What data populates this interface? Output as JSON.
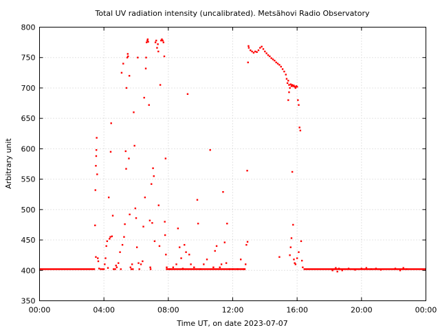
{
  "chart_data": {
    "type": "scatter",
    "title": "Total UV radiation intensity (uncalibrated). Metsähovi Radio Observatory",
    "xlabel": "Time UT, on date 2023-07-07",
    "ylabel": "Arbitrary unit",
    "xlim": [
      0,
      24
    ],
    "ylim": [
      350,
      800
    ],
    "x_ticks": [
      {
        "value": 0,
        "label": "00:00"
      },
      {
        "value": 4,
        "label": "04:00"
      },
      {
        "value": 8,
        "label": "08:00"
      },
      {
        "value": 12,
        "label": "12:00"
      },
      {
        "value": 16,
        "label": "16:00"
      },
      {
        "value": 20,
        "label": "20:00"
      },
      {
        "value": 24,
        "label": "00:00"
      }
    ],
    "y_ticks": [
      350,
      400,
      450,
      500,
      550,
      600,
      650,
      700,
      750,
      800
    ],
    "grid": true,
    "marker_color": "#ff0000",
    "series": [
      {
        "baseline_segments": [
          {
            "from": 0.0,
            "to": 3.45,
            "value": 402
          },
          {
            "from": 7.85,
            "to": 12.8,
            "value": 402
          },
          {
            "from": 16.4,
            "to": 24.0,
            "value": 402
          }
        ],
        "points": [
          [
            3.45,
            474
          ],
          [
            3.47,
            532
          ],
          [
            3.5,
            572
          ],
          [
            3.52,
            588
          ],
          [
            3.53,
            598
          ],
          [
            3.55,
            618
          ],
          [
            3.58,
            558
          ],
          [
            3.5,
            422
          ],
          [
            3.62,
            420
          ],
          [
            3.65,
            415
          ],
          [
            3.7,
            403
          ],
          [
            3.8,
            402
          ],
          [
            3.9,
            402
          ],
          [
            4.0,
            402
          ],
          [
            4.05,
            410
          ],
          [
            4.1,
            420
          ],
          [
            4.15,
            440
          ],
          [
            4.2,
            448
          ],
          [
            4.25,
            404
          ],
          [
            4.3,
            520
          ],
          [
            4.35,
            452
          ],
          [
            4.4,
            455
          ],
          [
            4.42,
            595
          ],
          [
            4.45,
            642
          ],
          [
            4.5,
            456
          ],
          [
            4.55,
            490
          ],
          [
            4.6,
            402
          ],
          [
            4.7,
            402
          ],
          [
            4.75,
            408
          ],
          [
            4.8,
            405
          ],
          [
            4.9,
            412
          ],
          [
            5.0,
            430
          ],
          [
            5.05,
            402
          ],
          [
            5.1,
            725
          ],
          [
            5.15,
            442
          ],
          [
            5.2,
            740
          ],
          [
            5.25,
            455
          ],
          [
            5.3,
            476
          ],
          [
            5.35,
            596
          ],
          [
            5.38,
            567
          ],
          [
            5.4,
            700
          ],
          [
            5.45,
            750
          ],
          [
            5.48,
            756
          ],
          [
            5.5,
            752
          ],
          [
            5.55,
            584
          ],
          [
            5.58,
            720
          ],
          [
            5.6,
            492
          ],
          [
            5.65,
            405
          ],
          [
            5.7,
            402
          ],
          [
            5.75,
            410
          ],
          [
            5.8,
            402
          ],
          [
            5.85,
            660
          ],
          [
            5.9,
            605
          ],
          [
            5.95,
            502
          ],
          [
            6.0,
            486
          ],
          [
            6.05,
            438
          ],
          [
            6.1,
            750
          ],
          [
            6.15,
            412
          ],
          [
            6.2,
            402
          ],
          [
            6.3,
            410
          ],
          [
            6.4,
            415
          ],
          [
            6.45,
            472
          ],
          [
            6.5,
            684
          ],
          [
            6.55,
            520
          ],
          [
            6.6,
            732
          ],
          [
            6.62,
            750
          ],
          [
            6.65,
            775
          ],
          [
            6.7,
            778
          ],
          [
            6.72,
            780
          ],
          [
            6.75,
            776
          ],
          [
            6.8,
            672
          ],
          [
            6.85,
            482
          ],
          [
            6.88,
            405
          ],
          [
            6.9,
            402
          ],
          [
            6.95,
            542
          ],
          [
            7.0,
            478
          ],
          [
            7.05,
            568
          ],
          [
            7.1,
            555
          ],
          [
            7.15,
            448
          ],
          [
            7.2,
            775
          ],
          [
            7.25,
            778
          ],
          [
            7.3,
            766
          ],
          [
            7.35,
            772
          ],
          [
            7.38,
            760
          ],
          [
            7.4,
            507
          ],
          [
            7.45,
            440
          ],
          [
            7.5,
            705
          ],
          [
            7.55,
            778
          ],
          [
            7.6,
            780
          ],
          [
            7.65,
            778
          ],
          [
            7.7,
            775
          ],
          [
            7.75,
            752
          ],
          [
            7.78,
            480
          ],
          [
            7.8,
            458
          ],
          [
            7.83,
            584
          ],
          [
            7.85,
            426
          ],
          [
            7.9,
            405
          ],
          [
            8.1,
            402
          ],
          [
            8.3,
            405
          ],
          [
            8.5,
            410
          ],
          [
            8.6,
            469
          ],
          [
            8.7,
            438
          ],
          [
            8.8,
            420
          ],
          [
            8.9,
            403
          ],
          [
            9.0,
            442
          ],
          [
            9.1,
            430
          ],
          [
            9.2,
            690
          ],
          [
            9.3,
            426
          ],
          [
            9.4,
            410
          ],
          [
            9.6,
            405
          ],
          [
            9.8,
            516
          ],
          [
            9.85,
            477
          ],
          [
            10.0,
            402
          ],
          [
            10.2,
            410
          ],
          [
            10.4,
            418
          ],
          [
            10.6,
            598
          ],
          [
            10.8,
            405
          ],
          [
            10.9,
            432
          ],
          [
            11.0,
            440
          ],
          [
            11.2,
            405
          ],
          [
            11.3,
            410
          ],
          [
            11.4,
            529
          ],
          [
            11.5,
            446
          ],
          [
            11.6,
            412
          ],
          [
            11.65,
            477
          ],
          [
            11.8,
            402
          ],
          [
            12.0,
            402
          ],
          [
            12.3,
            402
          ],
          [
            12.5,
            418
          ],
          [
            12.7,
            402
          ],
          [
            12.8,
            410
          ],
          [
            12.85,
            442
          ],
          [
            12.9,
            564
          ],
          [
            12.92,
            447
          ],
          [
            12.95,
            742
          ],
          [
            12.98,
            769
          ],
          [
            13.0,
            766
          ],
          [
            13.1,
            762
          ],
          [
            13.2,
            760
          ],
          [
            13.3,
            758
          ],
          [
            13.4,
            760
          ],
          [
            13.5,
            759
          ],
          [
            13.6,
            762
          ],
          [
            13.7,
            766
          ],
          [
            13.8,
            768
          ],
          [
            13.9,
            764
          ],
          [
            14.0,
            760
          ],
          [
            14.1,
            757
          ],
          [
            14.2,
            754
          ],
          [
            14.3,
            752
          ],
          [
            14.4,
            749
          ],
          [
            14.5,
            747
          ],
          [
            14.6,
            745
          ],
          [
            14.7,
            742
          ],
          [
            14.8,
            740
          ],
          [
            14.9,
            738
          ],
          [
            15.0,
            735
          ],
          [
            15.1,
            731
          ],
          [
            15.2,
            727
          ],
          [
            15.3,
            722
          ],
          [
            15.35,
            715
          ],
          [
            15.4,
            708
          ],
          [
            15.45,
            712
          ],
          [
            15.5,
            705
          ],
          [
            15.55,
            700
          ],
          [
            15.6,
            706
          ],
          [
            15.65,
            703
          ],
          [
            15.7,
            705
          ],
          [
            15.75,
            703
          ],
          [
            15.8,
            704
          ],
          [
            15.85,
            702
          ],
          [
            15.9,
            700
          ],
          [
            15.95,
            703
          ],
          [
            16.0,
            702
          ],
          [
            16.05,
            680
          ],
          [
            16.1,
            672
          ],
          [
            16.15,
            635
          ],
          [
            16.2,
            630
          ],
          [
            16.25,
            448
          ],
          [
            15.45,
            680
          ],
          [
            15.5,
            693
          ],
          [
            15.55,
            425
          ],
          [
            15.6,
            438
          ],
          [
            15.65,
            453
          ],
          [
            15.7,
            562
          ],
          [
            15.75,
            475
          ],
          [
            15.8,
            418
          ],
          [
            15.85,
            412
          ],
          [
            15.9,
            410
          ],
          [
            16.0,
            420
          ],
          [
            16.1,
            430
          ],
          [
            16.3,
            416
          ],
          [
            16.35,
            405
          ],
          [
            14.9,
            422
          ],
          [
            18.2,
            400
          ],
          [
            18.4,
            404
          ],
          [
            18.5,
            398
          ],
          [
            18.6,
            403
          ],
          [
            18.8,
            400
          ],
          [
            19.2,
            403
          ],
          [
            19.6,
            401
          ],
          [
            20.0,
            403
          ],
          [
            20.3,
            404
          ],
          [
            20.6,
            402
          ],
          [
            20.9,
            403
          ],
          [
            21.2,
            401
          ],
          [
            22.1,
            403
          ],
          [
            22.4,
            400
          ],
          [
            22.6,
            404
          ],
          [
            22.8,
            402
          ]
        ]
      }
    ]
  }
}
